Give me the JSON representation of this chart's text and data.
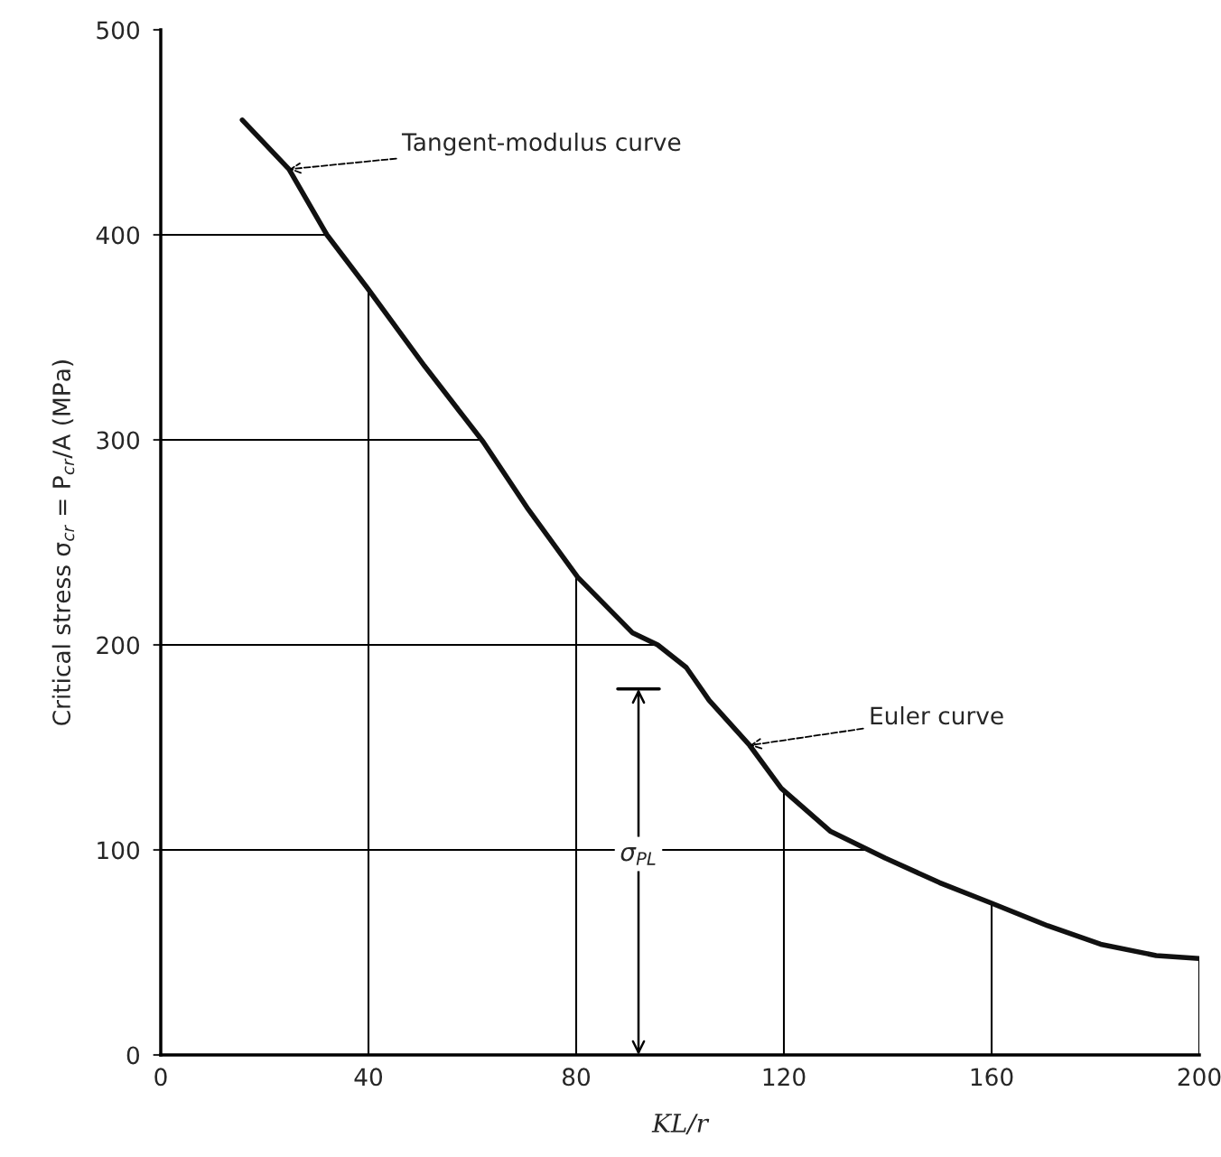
{
  "chart_data": {
    "type": "line",
    "xlabel": "KL/r",
    "ylabel": "Critical stress σ$_{cr}$ = P$_{cr}$/A (MPa)",
    "x": [
      15.7,
      24.7,
      32,
      39.8,
      50.8,
      62.1,
      70.8,
      80.3,
      90.8,
      95.7,
      101.2,
      105.6,
      113.4,
      119.5,
      129,
      139.5,
      150,
      160,
      170.8,
      181,
      191.7,
      200
    ],
    "series": [
      {
        "color": "#111111",
        "values": [
          456,
          432,
          400,
          374,
          336,
          299,
          266,
          233,
          206,
          200,
          189,
          173,
          151,
          130,
          109,
          96,
          84,
          74,
          63,
          54,
          48.5,
          47
        ]
      }
    ],
    "xlim": [
      0,
      200
    ],
    "xticks": [
      0,
      40,
      80,
      120,
      160,
      200
    ],
    "ylim": [
      0,
      500
    ],
    "yticks": [
      0,
      100,
      200,
      300,
      400,
      500
    ],
    "grid": true,
    "marker": "none",
    "line_style": "solid",
    "annotations": [
      {
        "text": "Tangent-modulus curve",
        "x": 24.7,
        "y": 432
      },
      {
        "text": "Euler curve",
        "x": 113.4,
        "y": 151
      },
      "σ$_{PL}$"
    ]
  }
}
